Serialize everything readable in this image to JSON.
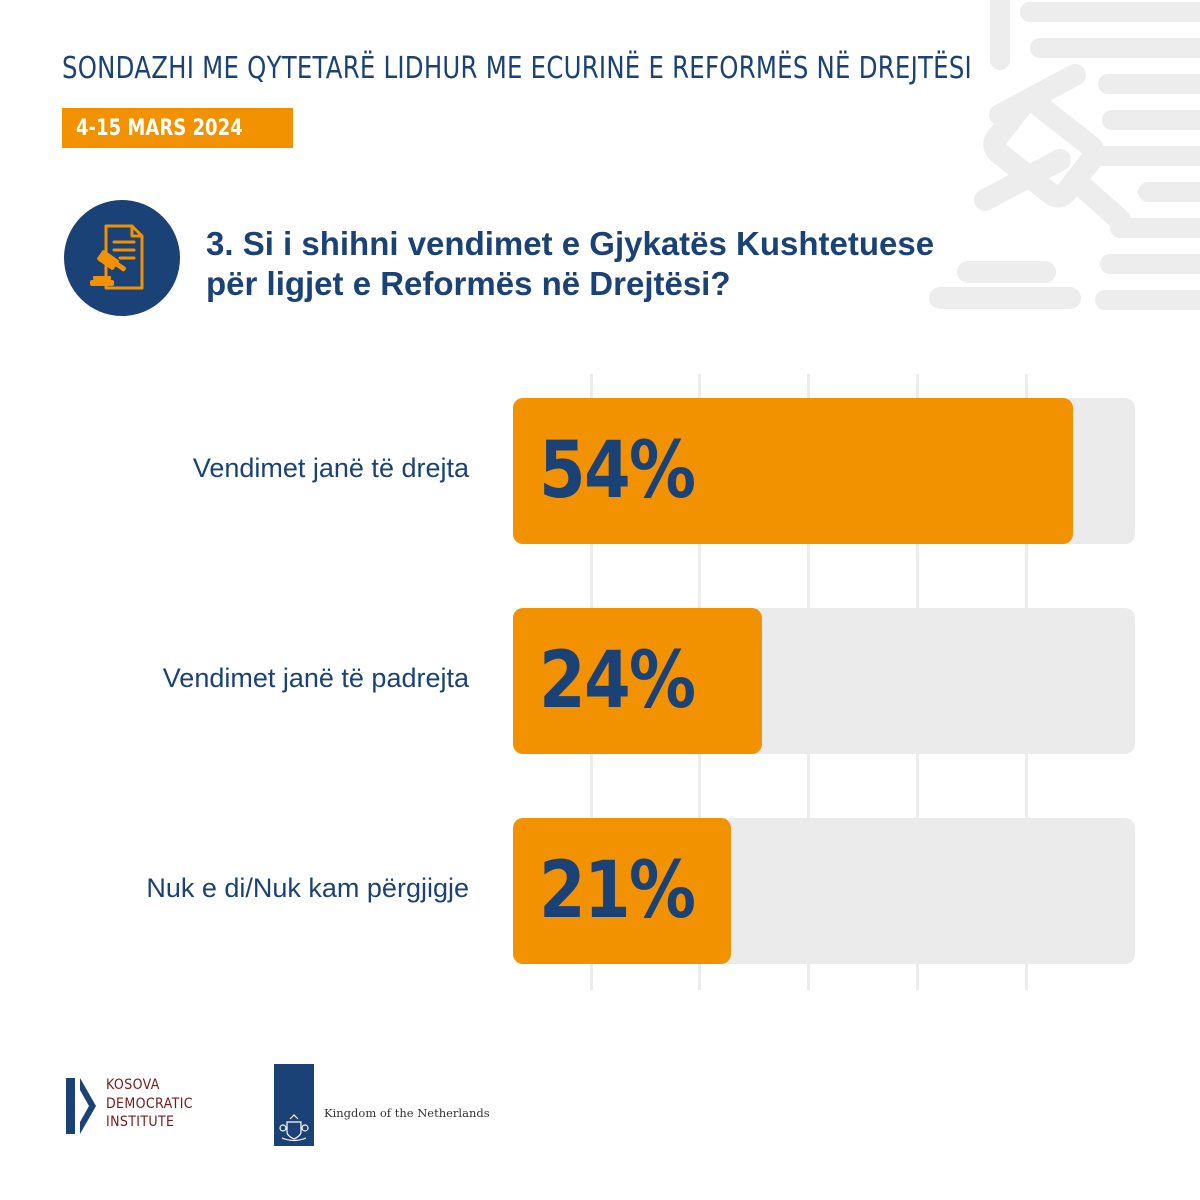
{
  "header": {
    "title": "SONDAZHI ME QYTETARË LIDHUR ME ECURINË E REFORMËS NË DREJTËSI",
    "date": "4-15 MARS 2024"
  },
  "question": {
    "line1": "3. Si i shihni vendimet e Gjykatës Kushtetuese",
    "line2": "për ligjet e Reformës në Drejtësi?",
    "icon": "gavel-document-icon"
  },
  "chart_data": {
    "type": "bar",
    "orientation": "horizontal",
    "categories": [
      "Vendimet janë të drejta",
      "Vendimet janë të padrejta",
      "Nuk e di/Nuk kam përgjigje"
    ],
    "values": [
      54,
      24,
      21
    ],
    "value_labels": [
      "54%",
      "24%",
      "21%"
    ],
    "unit": "%",
    "xlim": [
      0,
      60
    ],
    "grid": true
  },
  "colors": {
    "primary": "#1b4276",
    "accent": "#f39200",
    "track": "#ebebeb"
  },
  "footer": {
    "kdi": {
      "line1": "KOSOVA",
      "line2": "DEMOCRATIC",
      "line3": "INSTITUTE"
    },
    "netherlands": "Kingdom of the Netherlands"
  }
}
